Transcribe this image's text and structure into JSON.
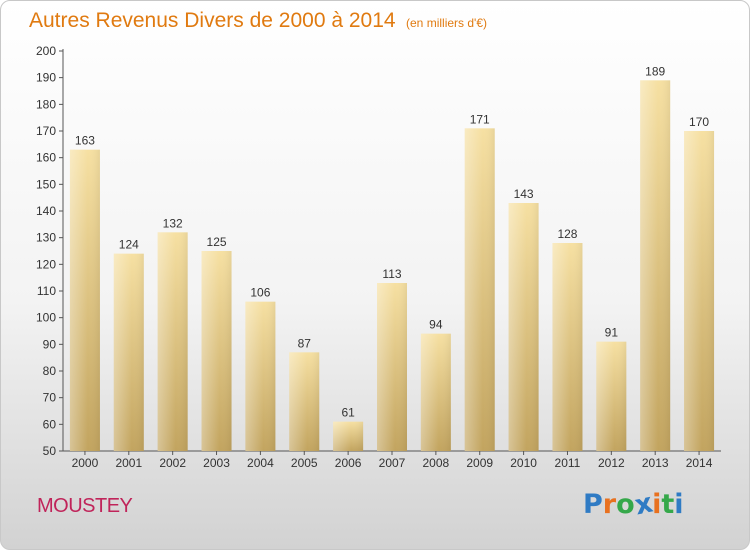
{
  "chart_data": {
    "type": "bar",
    "title": "Autres Revenus Divers de 2000 à 2014",
    "subtitle": "(en milliers d'€)",
    "categories": [
      "2000",
      "2001",
      "2002",
      "2003",
      "2004",
      "2005",
      "2006",
      "2007",
      "2008",
      "2009",
      "2010",
      "2011",
      "2012",
      "2013",
      "2014"
    ],
    "values": [
      163,
      124,
      132,
      125,
      106,
      87,
      61,
      113,
      94,
      171,
      143,
      128,
      91,
      189,
      170
    ],
    "ylim": [
      50,
      200
    ],
    "yticks": [
      50,
      60,
      70,
      80,
      90,
      100,
      110,
      120,
      130,
      140,
      150,
      160,
      170,
      180,
      190,
      200
    ],
    "grid": false,
    "bar_color": "#e2c57f"
  },
  "commune": "MOUSTEY",
  "logo": {
    "letters": [
      "P",
      "r",
      "o",
      "x",
      "i",
      "t",
      "i"
    ],
    "colors": [
      "#2f7bc4",
      "#e8711f",
      "#35a84a",
      "#2f7bc4",
      "#e8711f",
      "#35a84a",
      "#2f7bc4"
    ]
  }
}
